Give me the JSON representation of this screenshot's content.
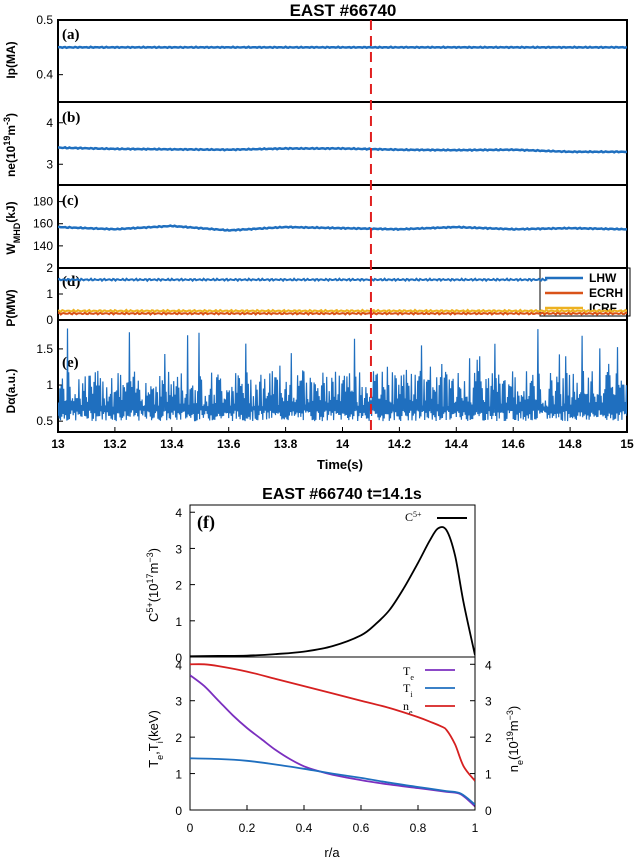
{
  "chart_data": [
    {
      "type": "line",
      "title": "EAST #66740",
      "xlabel": "Time(s)",
      "xlim": [
        13,
        15
      ],
      "x_ticks": [
        "13",
        "13.2",
        "13.4",
        "13.6",
        "13.8",
        "14",
        "14.2",
        "14.4",
        "14.6",
        "14.8",
        "15"
      ],
      "marker_time": 14.1,
      "panels": [
        {
          "label": "(a)",
          "ylabel": "Ip(MA)",
          "ylim": [
            0.35,
            0.5
          ],
          "y_ticks": [
            "0.4",
            "0.5"
          ],
          "series": [
            {
              "color": "#1f6fbf",
              "x": [
                13,
                13.5,
                14,
                14.5,
                15
              ],
              "y": [
                0.45,
                0.45,
                0.45,
                0.45,
                0.45
              ]
            }
          ]
        },
        {
          "label": "(b)",
          "ylabel": "ne(10^19m^-3)",
          "ylim": [
            2.5,
            4.5
          ],
          "y_ticks": [
            "3",
            "4"
          ],
          "series": [
            {
              "color": "#1f6fbf",
              "x": [
                13,
                13.2,
                13.4,
                13.6,
                13.8,
                14,
                14.2,
                14.4,
                14.6,
                14.8,
                15
              ],
              "y": [
                3.4,
                3.37,
                3.36,
                3.35,
                3.38,
                3.38,
                3.35,
                3.34,
                3.35,
                3.3,
                3.3
              ]
            }
          ]
        },
        {
          "label": "(c)",
          "ylabel": "W_MHD(kJ)",
          "ylim": [
            120,
            195
          ],
          "y_ticks": [
            "140",
            "160",
            "180"
          ],
          "series": [
            {
              "color": "#1f6fbf",
              "x": [
                13,
                13.2,
                13.4,
                13.6,
                13.8,
                14,
                14.2,
                14.4,
                14.6,
                14.8,
                15
              ],
              "y": [
                157,
                155,
                158,
                154,
                157,
                156,
                155,
                157,
                155,
                156,
                155
              ]
            }
          ]
        },
        {
          "label": "(d)",
          "ylabel": "P(MW)",
          "ylim": [
            0,
            2
          ],
          "y_ticks": [
            "0",
            "1",
            "2"
          ],
          "legend": {
            "placement": "right",
            "entries": [
              "LHW",
              "ECRH",
              "ICRF"
            ]
          },
          "series": [
            {
              "name": "LHW",
              "color": "#1f6fbf",
              "x": [
                13,
                14.72
              ],
              "y": [
                1.55,
                1.55
              ]
            },
            {
              "name": "ECRH",
              "color": "#d95319",
              "x": [
                13,
                15
              ],
              "y": [
                0.25,
                0.25
              ]
            },
            {
              "name": "ICRF",
              "color": "#edb120",
              "x": [
                13,
                15
              ],
              "y": [
                0.35,
                0.35
              ]
            }
          ]
        },
        {
          "label": "(e)",
          "ylabel": "Dα(a.u.)",
          "ylim": [
            0.35,
            1.9
          ],
          "y_ticks": [
            "0.5",
            "1",
            "1.5"
          ],
          "series": [
            {
              "color": "#1f6fbf",
              "baseline": 0.5,
              "typical_peak": 1.2,
              "max_peak": 1.8
            }
          ]
        }
      ]
    },
    {
      "type": "line",
      "title": "EAST #66740 t=14.1s",
      "xlabel": "r/a",
      "xlim": [
        0,
        1
      ],
      "x_ticks": [
        "0",
        "0.2",
        "0.4",
        "0.6",
        "0.8",
        "1"
      ],
      "panels": [
        {
          "label": "(f)",
          "ylabel": "C^5+(10^17m^-3)",
          "ylim": [
            0,
            4.2
          ],
          "y_ticks": [
            "0",
            "1",
            "2",
            "3",
            "4"
          ],
          "legend": {
            "placement": "top-right",
            "entries": [
              "C^5+"
            ]
          },
          "series": [
            {
              "name": "C5+",
              "color": "#000000",
              "x": [
                0,
                0.1,
                0.2,
                0.3,
                0.4,
                0.5,
                0.6,
                0.65,
                0.7,
                0.75,
                0.8,
                0.84,
                0.87,
                0.9,
                0.93,
                0.96,
                1.0
              ],
              "y": [
                0.02,
                0.03,
                0.04,
                0.08,
                0.15,
                0.3,
                0.6,
                0.9,
                1.3,
                1.9,
                2.6,
                3.2,
                3.55,
                3.5,
                2.8,
                1.5,
                0.05
              ]
            }
          ]
        },
        {
          "ylabel": "T_e,T_i(keV)",
          "ylabel_right": "n_e(10^19m^-3)",
          "ylim": [
            0,
            4.2
          ],
          "y_ticks": [
            "0",
            "1",
            "2",
            "3",
            "4"
          ],
          "y_ticks_right": [
            "0",
            "1",
            "2",
            "3",
            "4"
          ],
          "legend": {
            "placement": "top-right",
            "entries": [
              "Te",
              "Ti",
              "ne"
            ]
          },
          "series": [
            {
              "name": "Te",
              "color": "#7b2fbf",
              "x": [
                0,
                0.05,
                0.1,
                0.15,
                0.2,
                0.25,
                0.3,
                0.35,
                0.4,
                0.45,
                0.5,
                0.6,
                0.7,
                0.8,
                0.9,
                0.95,
                1.0
              ],
              "y": [
                3.7,
                3.4,
                3.0,
                2.6,
                2.25,
                1.95,
                1.65,
                1.4,
                1.2,
                1.07,
                0.97,
                0.82,
                0.7,
                0.6,
                0.5,
                0.43,
                0.1
              ]
            },
            {
              "name": "Ti",
              "color": "#1f6fbf",
              "x": [
                0,
                0.1,
                0.2,
                0.3,
                0.4,
                0.5,
                0.6,
                0.7,
                0.8,
                0.9,
                0.95,
                1.0
              ],
              "y": [
                1.42,
                1.4,
                1.35,
                1.25,
                1.13,
                1.0,
                0.88,
                0.75,
                0.63,
                0.52,
                0.45,
                0.15
              ]
            },
            {
              "name": "ne",
              "color": "#d62020",
              "x": [
                0,
                0.05,
                0.1,
                0.2,
                0.3,
                0.4,
                0.5,
                0.6,
                0.7,
                0.8,
                0.85,
                0.88,
                0.9,
                0.93,
                0.96,
                1.0
              ],
              "y": [
                4.0,
                4.0,
                3.95,
                3.8,
                3.6,
                3.4,
                3.2,
                3.0,
                2.8,
                2.55,
                2.4,
                2.3,
                2.2,
                1.8,
                1.2,
                0.8
              ]
            }
          ]
        }
      ]
    }
  ]
}
